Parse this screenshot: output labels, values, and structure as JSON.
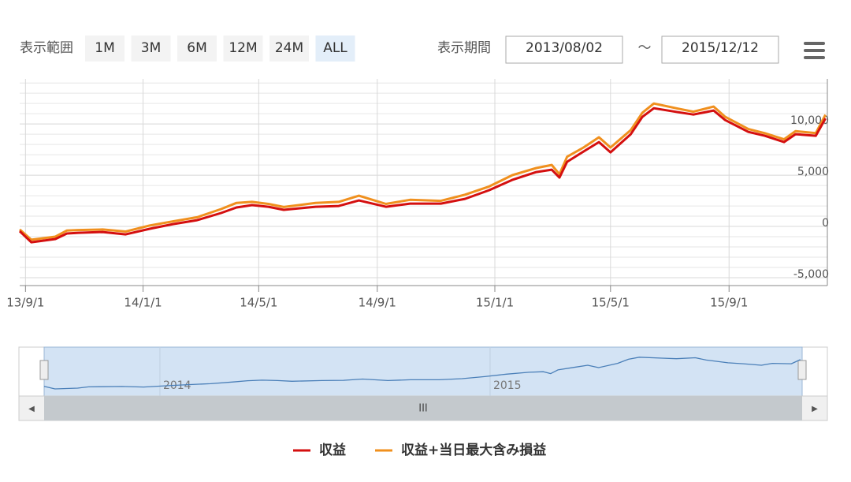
{
  "controls": {
    "range_label": "表示範囲",
    "buttons": [
      "1M",
      "3M",
      "6M",
      "12M",
      "24M",
      "ALL"
    ],
    "active_button": "ALL",
    "period_label": "表示期間",
    "from": "2013/08/02",
    "separator": "～",
    "to": "2015/12/12"
  },
  "chart_data": {
    "type": "line",
    "x": [
      "2013-08-26",
      "2013-09-07",
      "2013-10-02",
      "2013-10-14",
      "2013-10-26",
      "2013-11-20",
      "2013-12-14",
      "2014-01-08",
      "2014-02-01",
      "2014-02-26",
      "2014-03-23",
      "2014-04-08",
      "2014-04-24",
      "2014-05-11",
      "2014-05-27",
      "2014-06-29",
      "2014-07-23",
      "2014-08-13",
      "2014-09-10",
      "2014-10-05",
      "2014-11-06",
      "2014-12-01",
      "2014-12-26",
      "2015-01-19",
      "2015-02-13",
      "2015-03-01",
      "2015-03-09",
      "2015-03-17",
      "2015-04-03",
      "2015-04-19",
      "2015-05-01",
      "2015-05-22",
      "2015-06-03",
      "2015-06-15",
      "2015-07-10",
      "2015-07-26",
      "2015-08-16",
      "2015-08-28",
      "2015-09-21",
      "2015-10-08",
      "2015-10-28",
      "2015-11-09",
      "2015-11-30",
      "2015-12-10"
    ],
    "series": [
      {
        "name": "収益",
        "color": "#d40f0f",
        "values": [
          -460,
          -1540,
          -1230,
          -690,
          -620,
          -540,
          -770,
          -230,
          230,
          615,
          1310,
          1850,
          2080,
          1920,
          1620,
          1920,
          2000,
          2540,
          1920,
          2230,
          2230,
          2690,
          3540,
          4540,
          5310,
          5540,
          4770,
          6310,
          7310,
          8230,
          7230,
          9000,
          10690,
          11540,
          11150,
          10920,
          11310,
          10380,
          9230,
          8850,
          8230,
          9000,
          8850,
          10540
        ]
      },
      {
        "name": "収益+当日最大含み損益",
        "color": "#f0901e",
        "values": [
          -300,
          -1300,
          -1000,
          -400,
          -350,
          -300,
          -500,
          100,
          500,
          900,
          1700,
          2300,
          2400,
          2200,
          1900,
          2300,
          2400,
          3000,
          2200,
          2600,
          2500,
          3100,
          3900,
          5000,
          5700,
          6000,
          5100,
          6800,
          7700,
          8700,
          7700,
          9400,
          11100,
          12000,
          11500,
          11200,
          11700,
          10700,
          9500,
          9100,
          8500,
          9300,
          9100,
          10900
        ]
      }
    ],
    "xlim": [
      "2013-08-26",
      "2015-12-12"
    ],
    "xticks": [
      {
        "value": "2013-09-01",
        "label": "13/9/1"
      },
      {
        "value": "2014-01-01",
        "label": "14/1/1"
      },
      {
        "value": "2014-05-01",
        "label": "14/5/1"
      },
      {
        "value": "2014-09-01",
        "label": "14/9/1"
      },
      {
        "value": "2015-01-01",
        "label": "15/1/1"
      },
      {
        "value": "2015-05-01",
        "label": "15/5/1"
      },
      {
        "value": "2015-09-01",
        "label": "15/9/1"
      }
    ],
    "ylim": [
      -5770,
      14400
    ],
    "yticks": [
      {
        "value": -5000,
        "label": "-5,000"
      },
      0,
      {
        "value": 5000,
        "label": "5,000"
      },
      {
        "value": 10000,
        "label": "10,000"
      }
    ],
    "y_minor_ticks": [
      -4000,
      -3000,
      -2000,
      -1000,
      1000,
      2000,
      3000,
      4000,
      6000,
      7000,
      8000,
      9000,
      11000,
      12000,
      13000,
      14000
    ],
    "grid": true,
    "navigator": {
      "color": "#4a7fb8",
      "labels": [
        {
          "value": "2014-01-01",
          "label": "2014"
        },
        {
          "value": "2015-01-01",
          "label": "2015"
        }
      ]
    },
    "scrollbar_label": "III",
    "legend": "bottom"
  }
}
